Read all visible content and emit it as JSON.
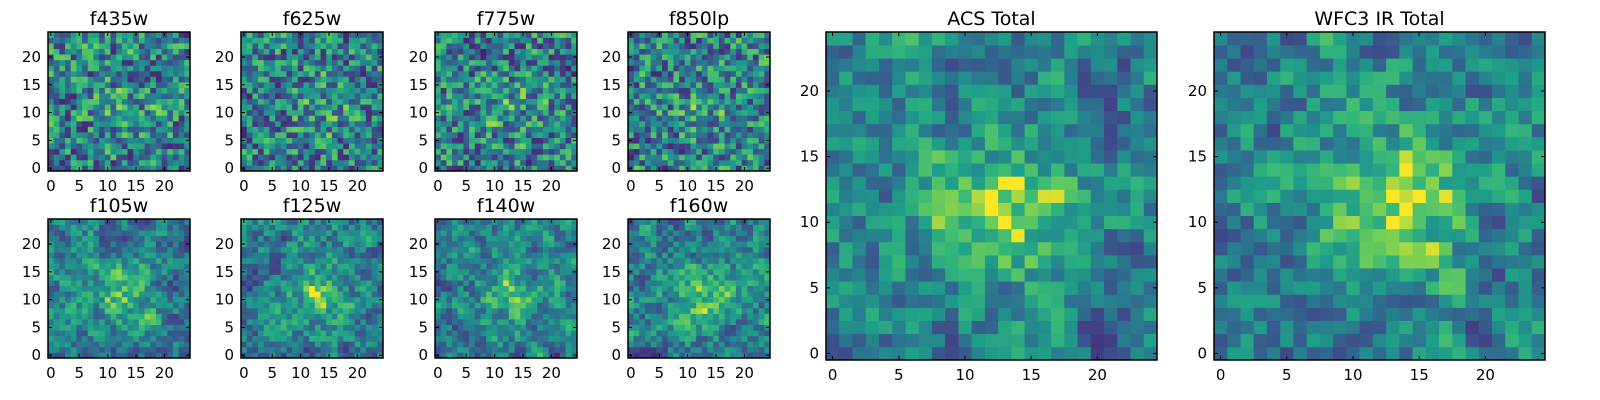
{
  "chart_data": [
    {
      "type": "heatmap",
      "title": "f435w",
      "x_ticks": [
        "0",
        "5",
        "10",
        "15",
        "20"
      ],
      "y_ticks": [
        "0",
        "5",
        "10",
        "15",
        "20"
      ],
      "xlim": [
        -0.5,
        24.5
      ],
      "ylim": [
        -0.5,
        24.5
      ],
      "grid": false,
      "colormap": "viridis",
      "seed": 11
    },
    {
      "type": "heatmap",
      "title": "f625w",
      "x_ticks": [
        "0",
        "5",
        "10",
        "15",
        "20"
      ],
      "y_ticks": [
        "0",
        "5",
        "10",
        "15",
        "20"
      ],
      "xlim": [
        -0.5,
        24.5
      ],
      "ylim": [
        -0.5,
        24.5
      ],
      "grid": false,
      "colormap": "viridis",
      "seed": 23
    },
    {
      "type": "heatmap",
      "title": "f775w",
      "x_ticks": [
        "0",
        "5",
        "10",
        "15",
        "20"
      ],
      "y_ticks": [
        "0",
        "5",
        "10",
        "15",
        "20"
      ],
      "xlim": [
        -0.5,
        24.5
      ],
      "ylim": [
        -0.5,
        24.5
      ],
      "grid": false,
      "colormap": "viridis",
      "seed": 37
    },
    {
      "type": "heatmap",
      "title": "f850lp",
      "x_ticks": [
        "0",
        "5",
        "10",
        "15",
        "20"
      ],
      "y_ticks": [
        "0",
        "5",
        "10",
        "15",
        "20"
      ],
      "xlim": [
        -0.5,
        24.5
      ],
      "ylim": [
        -0.5,
        24.5
      ],
      "grid": false,
      "colormap": "viridis",
      "seed": 41
    },
    {
      "type": "heatmap",
      "title": "f105w",
      "x_ticks": [
        "0",
        "5",
        "10",
        "15",
        "20"
      ],
      "y_ticks": [
        "0",
        "5",
        "10",
        "15",
        "20"
      ],
      "xlim": [
        -0.5,
        24.5
      ],
      "ylim": [
        -0.5,
        24.5
      ],
      "grid": false,
      "colormap": "viridis",
      "seed": 53
    },
    {
      "type": "heatmap",
      "title": "f125w",
      "x_ticks": [
        "0",
        "5",
        "10",
        "15",
        "20"
      ],
      "y_ticks": [
        "0",
        "5",
        "10",
        "15",
        "20"
      ],
      "xlim": [
        -0.5,
        24.5
      ],
      "ylim": [
        -0.5,
        24.5
      ],
      "grid": false,
      "colormap": "viridis",
      "seed": 67
    },
    {
      "type": "heatmap",
      "title": "f140w",
      "x_ticks": [
        "0",
        "5",
        "10",
        "15",
        "20"
      ],
      "y_ticks": [
        "0",
        "5",
        "10",
        "15",
        "20"
      ],
      "xlim": [
        -0.5,
        24.5
      ],
      "ylim": [
        -0.5,
        24.5
      ],
      "grid": false,
      "colormap": "viridis",
      "seed": 79
    },
    {
      "type": "heatmap",
      "title": "f160w",
      "x_ticks": [
        "0",
        "5",
        "10",
        "15",
        "20"
      ],
      "y_ticks": [
        "0",
        "5",
        "10",
        "15",
        "20"
      ],
      "xlim": [
        -0.5,
        24.5
      ],
      "ylim": [
        -0.5,
        24.5
      ],
      "grid": false,
      "colormap": "viridis",
      "seed": 97
    },
    {
      "type": "heatmap",
      "title": "ACS Total",
      "x_ticks": [
        "0",
        "5",
        "10",
        "15",
        "20"
      ],
      "y_ticks": [
        "0",
        "5",
        "10",
        "15",
        "20"
      ],
      "xlim": [
        -0.5,
        24.5
      ],
      "ylim": [
        -0.5,
        24.5
      ],
      "grid": false,
      "colormap": "viridis",
      "seed": 131
    },
    {
      "type": "heatmap",
      "title": "WFC3 IR Total",
      "x_ticks": [
        "0",
        "5",
        "10",
        "15",
        "20"
      ],
      "y_ticks": [
        "0",
        "5",
        "10",
        "15",
        "20"
      ],
      "xlim": [
        -0.5,
        24.5
      ],
      "ylim": [
        -0.5,
        24.5
      ],
      "grid": false,
      "colormap": "viridis",
      "seed": 149
    }
  ],
  "colors": {
    "axis": "#000000",
    "background": "#ffffff",
    "viridis_dark": "#440154",
    "viridis_mid": "#21918c",
    "viridis_bright": "#fde725"
  }
}
